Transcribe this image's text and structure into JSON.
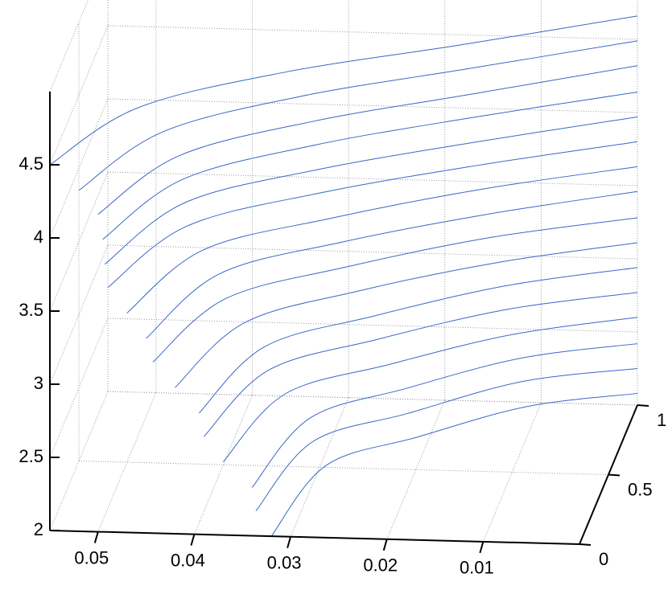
{
  "chart_data": {
    "type": "waterfall3d",
    "color": "#3a66c8",
    "grid": true,
    "xlim": [
      0.055,
      0
    ],
    "ylim": [
      0,
      1
    ],
    "zlim": [
      2,
      5
    ],
    "xticks": [
      0.05,
      0.04,
      0.03,
      0.02,
      0.01
    ],
    "yticks": [
      0,
      0.5,
      1
    ],
    "zticks": [
      2,
      2.5,
      3,
      3.5,
      4,
      4.5
    ],
    "y": [
      0,
      0.15,
      0.4,
      0.7,
      1
    ],
    "series": [
      {
        "x": [
          0.055,
          0.0468,
          0.033,
          0.0165,
          0
        ],
        "z": [
          4.5,
          4.76,
          4.79,
          4.72,
          4.66
        ]
      },
      {
        "x": [
          0.052,
          0.0442,
          0.0312,
          0.0156,
          0
        ],
        "z": [
          4.33,
          4.6,
          4.63,
          4.56,
          4.49
        ]
      },
      {
        "x": [
          0.05,
          0.0425,
          0.03,
          0.015,
          0
        ],
        "z": [
          4.17,
          4.44,
          4.46,
          4.39,
          4.32
        ]
      },
      {
        "x": [
          0.0495,
          0.0421,
          0.0297,
          0.0149,
          0
        ],
        "z": [
          4.0,
          4.28,
          4.3,
          4.23,
          4.14
        ]
      },
      {
        "x": [
          0.0493,
          0.0419,
          0.0296,
          0.0148,
          0
        ],
        "z": [
          3.83,
          4.12,
          4.13,
          4.06,
          3.97
        ]
      },
      {
        "x": [
          0.049,
          0.0417,
          0.0294,
          0.0147,
          0
        ],
        "z": [
          3.67,
          3.96,
          3.97,
          3.9,
          3.8
        ]
      },
      {
        "x": [
          0.047,
          0.04,
          0.0282,
          0.0141,
          0
        ],
        "z": [
          3.5,
          3.8,
          3.8,
          3.74,
          3.63
        ]
      },
      {
        "x": [
          0.045,
          0.0383,
          0.027,
          0.0135,
          0
        ],
        "z": [
          3.33,
          3.64,
          3.64,
          3.57,
          3.46
        ]
      },
      {
        "x": [
          0.0443,
          0.0377,
          0.0266,
          0.0133,
          0
        ],
        "z": [
          3.17,
          3.47,
          3.47,
          3.41,
          3.28
        ]
      },
      {
        "x": [
          0.042,
          0.0357,
          0.0252,
          0.0126,
          0
        ],
        "z": [
          3.0,
          3.31,
          3.31,
          3.24,
          3.11
        ]
      },
      {
        "x": [
          0.0395,
          0.0336,
          0.0237,
          0.0119,
          0
        ],
        "z": [
          2.83,
          3.15,
          3.14,
          3.08,
          2.94
        ]
      },
      {
        "x": [
          0.039,
          0.0332,
          0.0234,
          0.0117,
          0
        ],
        "z": [
          2.67,
          2.99,
          2.98,
          2.92,
          2.77
        ]
      },
      {
        "x": [
          0.037,
          0.0315,
          0.0222,
          0.0111,
          0
        ],
        "z": [
          2.5,
          2.83,
          2.81,
          2.75,
          2.6
        ]
      },
      {
        "x": [
          0.034,
          0.0289,
          0.0204,
          0.0102,
          0
        ],
        "z": [
          2.33,
          2.67,
          2.65,
          2.59,
          2.42
        ]
      },
      {
        "x": [
          0.0336,
          0.0286,
          0.0202,
          0.0101,
          0
        ],
        "z": [
          2.17,
          2.51,
          2.48,
          2.43,
          2.25
        ]
      },
      {
        "x": [
          0.032,
          0.0272,
          0.0192,
          0.0096,
          0
        ],
        "z": [
          2.0,
          2.35,
          2.32,
          2.26,
          2.08
        ]
      }
    ]
  }
}
